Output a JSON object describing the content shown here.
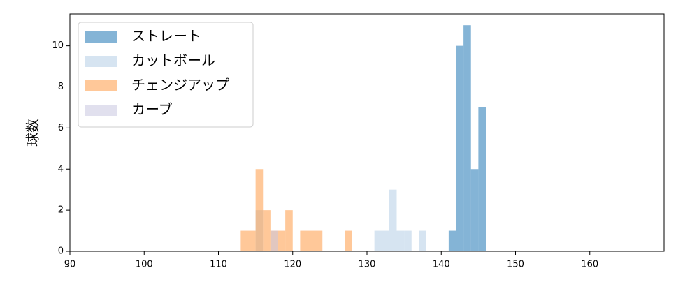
{
  "chart_data": {
    "type": "histogram",
    "ylabel": "球数",
    "bins": [
      113,
      114,
      115,
      116,
      117,
      118,
      119,
      120,
      121,
      122,
      123,
      124,
      125,
      126,
      127,
      128,
      129,
      130,
      131,
      132,
      133,
      134,
      135,
      136,
      137,
      138,
      139,
      140,
      141,
      142,
      143,
      144,
      145,
      146
    ],
    "series": [
      {
        "name": "ストレート",
        "color": "#1f77b4",
        "values": [
          0,
          0,
          0,
          0,
          0,
          0,
          0,
          0,
          0,
          0,
          0,
          0,
          0,
          0,
          0,
          0,
          0,
          0,
          0,
          0,
          0,
          0,
          0,
          0,
          0,
          0,
          0,
          0,
          1,
          10,
          11,
          4,
          7
        ]
      },
      {
        "name": "カットボール",
        "color": "#b5cde6",
        "values": [
          0,
          0,
          2,
          0,
          0,
          0,
          0,
          0,
          0,
          0,
          0,
          0,
          0,
          0,
          0,
          0,
          0,
          0,
          1,
          1,
          3,
          1,
          1,
          0,
          1,
          0,
          0,
          0,
          0,
          0,
          0,
          0,
          0
        ]
      },
      {
        "name": "チェンジアップ",
        "color": "#ff9a45",
        "values": [
          1,
          1,
          4,
          2,
          1,
          1,
          2,
          0,
          1,
          1,
          1,
          0,
          0,
          0,
          1,
          0,
          0,
          0,
          0,
          0,
          0,
          0,
          0,
          0,
          0,
          0,
          0,
          0,
          0,
          0,
          0,
          0,
          0
        ]
      },
      {
        "name": "カーブ",
        "color": "#c9c6e0",
        "values": [
          0,
          0,
          0,
          0,
          1,
          0,
          0,
          0,
          0,
          0,
          0,
          0,
          0,
          0,
          0,
          0,
          0,
          0,
          0,
          0,
          0,
          0,
          0,
          0,
          0,
          0,
          0,
          0,
          0,
          0,
          0,
          0,
          0
        ]
      }
    ],
    "xlim": [
      90,
      170
    ],
    "xticks": [
      90,
      100,
      110,
      120,
      130,
      140,
      150,
      160
    ],
    "ylim": [
      0,
      11.55
    ],
    "yticks": [
      0,
      2,
      4,
      6,
      8,
      10
    ],
    "legend": "upper left"
  }
}
